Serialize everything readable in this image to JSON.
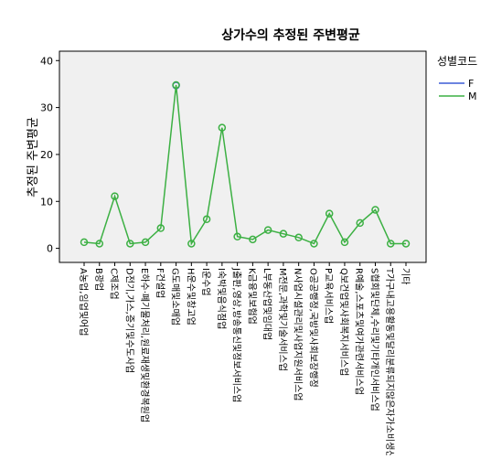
{
  "chart_data": {
    "type": "line",
    "title": "상가수의 추정된 주변평균",
    "y_label": "추정된 주변평균",
    "legend_title": "성별코드",
    "legend": "right",
    "categories": [
      "A농업,임업및어업",
      "B광업",
      "C제조업",
      "D전기,가스,증기및수도사업",
      "E하수·폐기물처리,원료재생및환경복원업",
      "F건설업",
      "G도매및소매업",
      "H운수및창고업",
      "I운수업",
      "I숙박및음식점업",
      "J출판,영상,방송통신및정보서비스업",
      "K금융및보험업",
      "L부동산업및임대업",
      "M전문,과학및기술서비스업",
      "N사업시설관리및사업지원서비스업",
      "O공공행정,국방및사회보장행정",
      "P교육서비스업",
      "Q보건업및사회복지서비스업",
      "R예술,스포츠및여가관련서비스업",
      "S협회및단체,수리및기타개인서비스업",
      "T가구내고용활동및달리분류되지않은자가소비생산활동",
      "기타"
    ],
    "series": [
      {
        "name": "F",
        "color": "#3c5bd6",
        "values": [
          null,
          null,
          null,
          null,
          null,
          null,
          34.7,
          null,
          null,
          null,
          null,
          null,
          null,
          null,
          null,
          null,
          null,
          null,
          null,
          null,
          null,
          null
        ]
      },
      {
        "name": "M",
        "color": "#3cb043",
        "values": [
          1.3,
          1.0,
          11.1,
          1.0,
          1.3,
          4.3,
          34.8,
          1.0,
          6.2,
          25.7,
          2.5,
          1.9,
          3.9,
          3.1,
          2.3,
          1.0,
          7.4,
          1.3,
          5.4,
          8.2,
          1.0,
          1.0
        ]
      }
    ],
    "ylim": [
      -3,
      42
    ],
    "yticks": [
      0,
      10,
      20,
      30,
      40
    ]
  }
}
